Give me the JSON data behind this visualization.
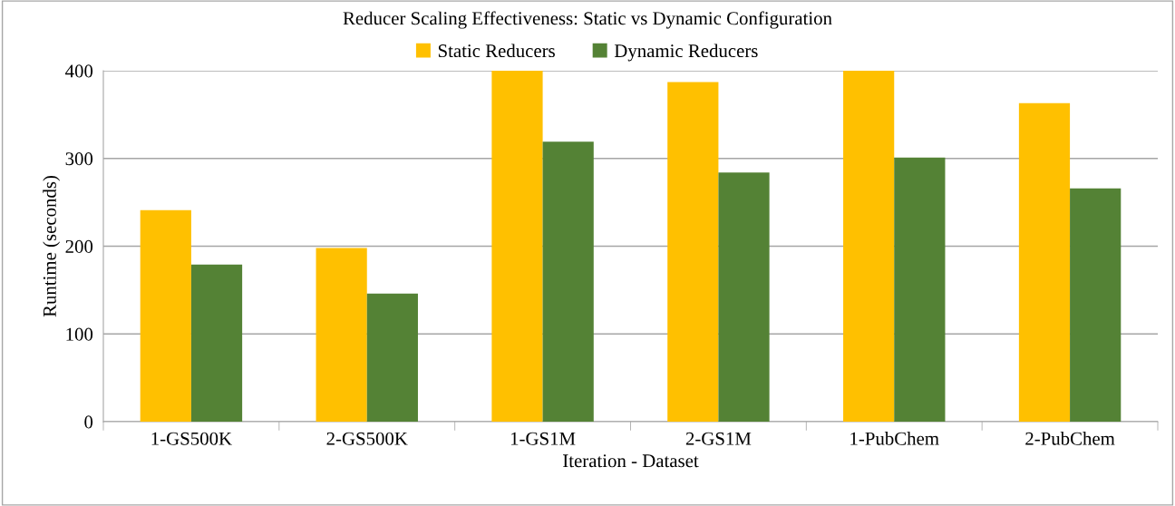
{
  "chart_data": {
    "type": "bar",
    "title": "Reducer Scaling Effectiveness: Static vs Dynamic Configuration",
    "xlabel": "Iteration - Dataset",
    "ylabel": "Runtime (seconds)",
    "categories": [
      "1-GS500K",
      "2-GS500K",
      "1-GS1M",
      "2-GS1M",
      "1-PubChem",
      "2-PubChem"
    ],
    "series": [
      {
        "name": "Static Reducers",
        "color": "#ffc000",
        "values": [
          241,
          198,
          400,
          387,
          400,
          363
        ]
      },
      {
        "name": "Dynamic Reducers",
        "color": "#548235",
        "values": [
          179,
          146,
          319,
          284,
          301,
          266
        ]
      }
    ],
    "ylim": [
      0,
      400
    ],
    "yticks": [
      0,
      100,
      200,
      300,
      400
    ],
    "grid": "y",
    "legend": "top"
  }
}
